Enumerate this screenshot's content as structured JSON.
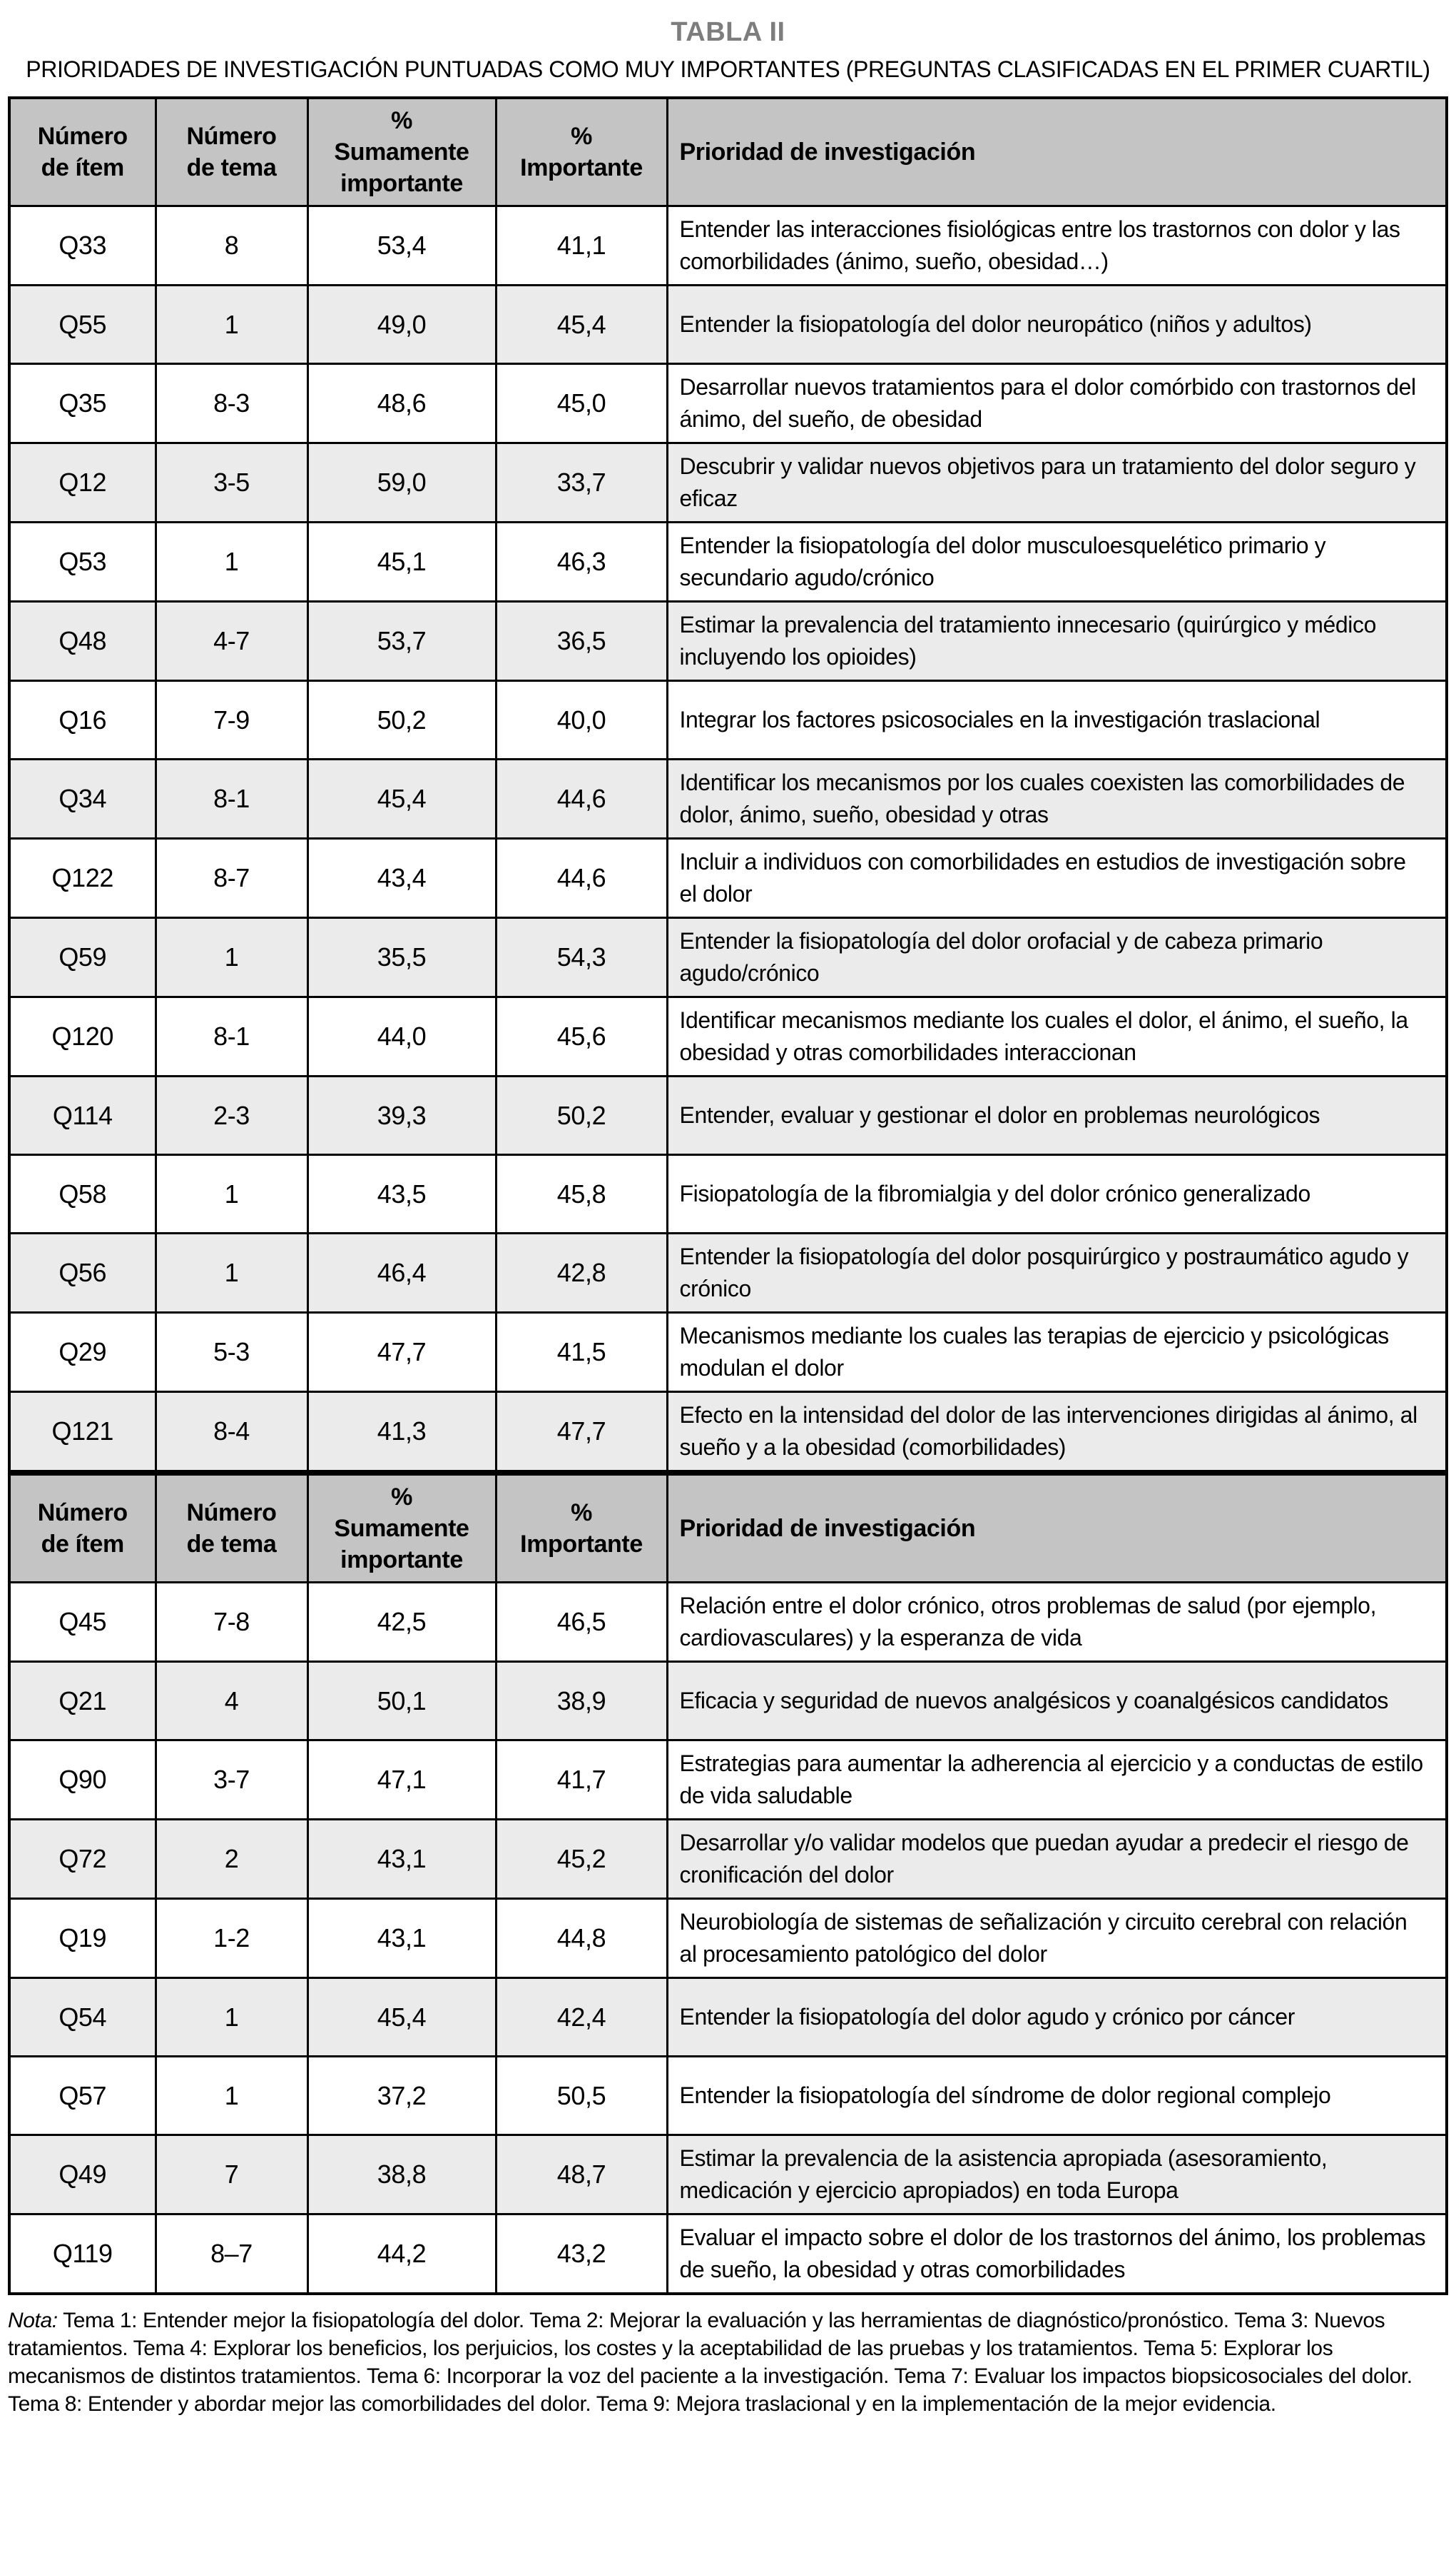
{
  "title": "TABLA II",
  "subtitle": "PRIORIDADES DE INVESTIGACIÓN PUNTUADAS COMO MUY IMPORTANTES (PREGUNTAS CLASIFICADAS EN EL PRIMER CUARTIL)",
  "colors": {
    "header_bg": "#c4c4c4",
    "alt_row_bg": "#ebebeb",
    "border": "#000000",
    "title_gray": "#7d7d7d"
  },
  "columns": [
    {
      "id": "item",
      "lines": [
        "Número",
        "de ítem"
      ]
    },
    {
      "id": "tema",
      "lines": [
        "Número",
        "de tema"
      ]
    },
    {
      "id": "sumamente",
      "lines": [
        "%",
        "Sumamente",
        "importante"
      ]
    },
    {
      "id": "importante",
      "lines": [
        "%",
        "Importante"
      ]
    },
    {
      "id": "prioridad",
      "lines": [
        "Prioridad de investigación"
      ]
    }
  ],
  "sections": [
    {
      "rows": [
        {
          "item": "Q33",
          "tema": "8",
          "sumamente": "53,4",
          "importante": "41,1",
          "prioridad": "Entender las interacciones fisiológicas entre los trastornos con dolor y las comorbilidades (ánimo, sueño, obesidad…)"
        },
        {
          "item": "Q55",
          "tema": "1",
          "sumamente": "49,0",
          "importante": "45,4",
          "prioridad": "Entender la fisiopatología del dolor neuropático (niños y adultos)"
        },
        {
          "item": "Q35",
          "tema": "8-3",
          "sumamente": "48,6",
          "importante": "45,0",
          "prioridad": "Desarrollar nuevos tratamientos para el dolor comórbido con trastornos del ánimo, del sueño, de obesidad"
        },
        {
          "item": "Q12",
          "tema": "3-5",
          "sumamente": "59,0",
          "importante": "33,7",
          "prioridad": "Descubrir y validar nuevos objetivos para un tratamiento del dolor seguro y eficaz"
        },
        {
          "item": "Q53",
          "tema": "1",
          "sumamente": "45,1",
          "importante": "46,3",
          "prioridad": "Entender la fisiopatología del dolor musculoesquelético primario y secundario agudo/crónico"
        },
        {
          "item": "Q48",
          "tema": "4-7",
          "sumamente": "53,7",
          "importante": "36,5",
          "prioridad": "Estimar la prevalencia del tratamiento innecesario (quirúrgico y médico incluyendo los opioides)"
        },
        {
          "item": "Q16",
          "tema": "7-9",
          "sumamente": "50,2",
          "importante": "40,0",
          "prioridad": "Integrar los factores psicosociales en la investigación traslacional"
        },
        {
          "item": "Q34",
          "tema": "8-1",
          "sumamente": "45,4",
          "importante": "44,6",
          "prioridad": "Identificar los mecanismos por los cuales coexisten las comorbilidades de dolor, ánimo, sueño, obesidad y otras"
        },
        {
          "item": "Q122",
          "tema": "8-7",
          "sumamente": "43,4",
          "importante": "44,6",
          "prioridad": "Incluir a individuos con comorbilidades en estudios de investigación sobre el dolor"
        },
        {
          "item": "Q59",
          "tema": "1",
          "sumamente": "35,5",
          "importante": "54,3",
          "prioridad": "Entender la fisiopatología del dolor orofacial y de cabeza primario agudo/crónico"
        },
        {
          "item": "Q120",
          "tema": "8-1",
          "sumamente": "44,0",
          "importante": "45,6",
          "prioridad": "Identificar mecanismos mediante los cuales el dolor, el ánimo, el sueño, la obesidad y otras comorbilidades interaccionan"
        },
        {
          "item": "Q114",
          "tema": "2-3",
          "sumamente": "39,3",
          "importante": "50,2",
          "prioridad": "Entender, evaluar y gestionar el dolor en problemas neurológicos"
        },
        {
          "item": "Q58",
          "tema": "1",
          "sumamente": "43,5",
          "importante": "45,8",
          "prioridad": "Fisiopatología de la fibromialgia y del dolor crónico generalizado"
        },
        {
          "item": "Q56",
          "tema": "1",
          "sumamente": "46,4",
          "importante": "42,8",
          "prioridad": "Entender la fisiopatología del dolor posquirúrgico y postraumático agudo y crónico"
        },
        {
          "item": "Q29",
          "tema": "5-3",
          "sumamente": "47,7",
          "importante": "41,5",
          "prioridad": "Mecanismos mediante los cuales las terapias de ejercicio y psicológicas modulan el dolor"
        },
        {
          "item": "Q121",
          "tema": "8-4",
          "sumamente": "41,3",
          "importante": "47,7",
          "prioridad": "Efecto en la intensidad del dolor de las intervenciones dirigidas al ánimo, al sueño y a la obesidad (comorbilidades)"
        }
      ]
    },
    {
      "rows": [
        {
          "item": "Q45",
          "tema": "7-8",
          "sumamente": "42,5",
          "importante": "46,5",
          "prioridad": "Relación entre el dolor crónico, otros problemas de salud (por ejemplo, cardiovasculares) y la esperanza de vida"
        },
        {
          "item": "Q21",
          "tema": "4",
          "sumamente": "50,1",
          "importante": "38,9",
          "prioridad": "Eficacia y seguridad de nuevos analgésicos y coanalgésicos candidatos"
        },
        {
          "item": "Q90",
          "tema": "3-7",
          "sumamente": "47,1",
          "importante": "41,7",
          "prioridad": "Estrategias para aumentar la adherencia al ejercicio y a conductas de estilo de vida saludable"
        },
        {
          "item": "Q72",
          "tema": "2",
          "sumamente": "43,1",
          "importante": "45,2",
          "prioridad": "Desarrollar y/o validar modelos que puedan ayudar a predecir el riesgo de cronificación del dolor"
        },
        {
          "item": "Q19",
          "tema": "1-2",
          "sumamente": "43,1",
          "importante": "44,8",
          "prioridad": "Neurobiología de sistemas de señalización y circuito cerebral con relación al procesamiento patológico del dolor"
        },
        {
          "item": "Q54",
          "tema": "1",
          "sumamente": "45,4",
          "importante": "42,4",
          "prioridad": "Entender la fisiopatología del dolor agudo y crónico por cáncer"
        },
        {
          "item": "Q57",
          "tema": "1",
          "sumamente": "37,2",
          "importante": "50,5",
          "prioridad": "Entender la fisiopatología del síndrome de dolor regional complejo"
        },
        {
          "item": "Q49",
          "tema": "7",
          "sumamente": "38,8",
          "importante": "48,7",
          "prioridad": "Estimar la prevalencia de la asistencia apropiada (asesoramiento, medicación y ejercicio apropiados) en toda Europa"
        },
        {
          "item": "Q119",
          "tema": "8–7",
          "sumamente": "44,2",
          "importante": "43,2",
          "prioridad": "Evaluar el impacto sobre el dolor de los trastornos del ánimo, los problemas de sueño, la obesidad y otras comorbilidades"
        }
      ]
    }
  ],
  "note": {
    "label": "Nota:",
    "text": "Tema 1: Entender mejor la fisiopatología del dolor. Tema 2: Mejorar la evaluación y las herramientas de diagnóstico/pronóstico. Tema 3: Nuevos tratamientos. Tema 4: Explorar los beneficios, los perjuicios, los costes y la aceptabilidad de las pruebas y los tratamientos. Tema 5: Explorar los mecanismos de distintos tratamientos. Tema 6: Incorporar la voz del paciente a la investigación. Tema 7: Evaluar los impactos biopsicosociales del dolor. Tema 8: Entender y abordar mejor las comorbilidades del dolor. Tema 9: Mejora traslacional y en la implementación de la mejor evidencia."
  }
}
